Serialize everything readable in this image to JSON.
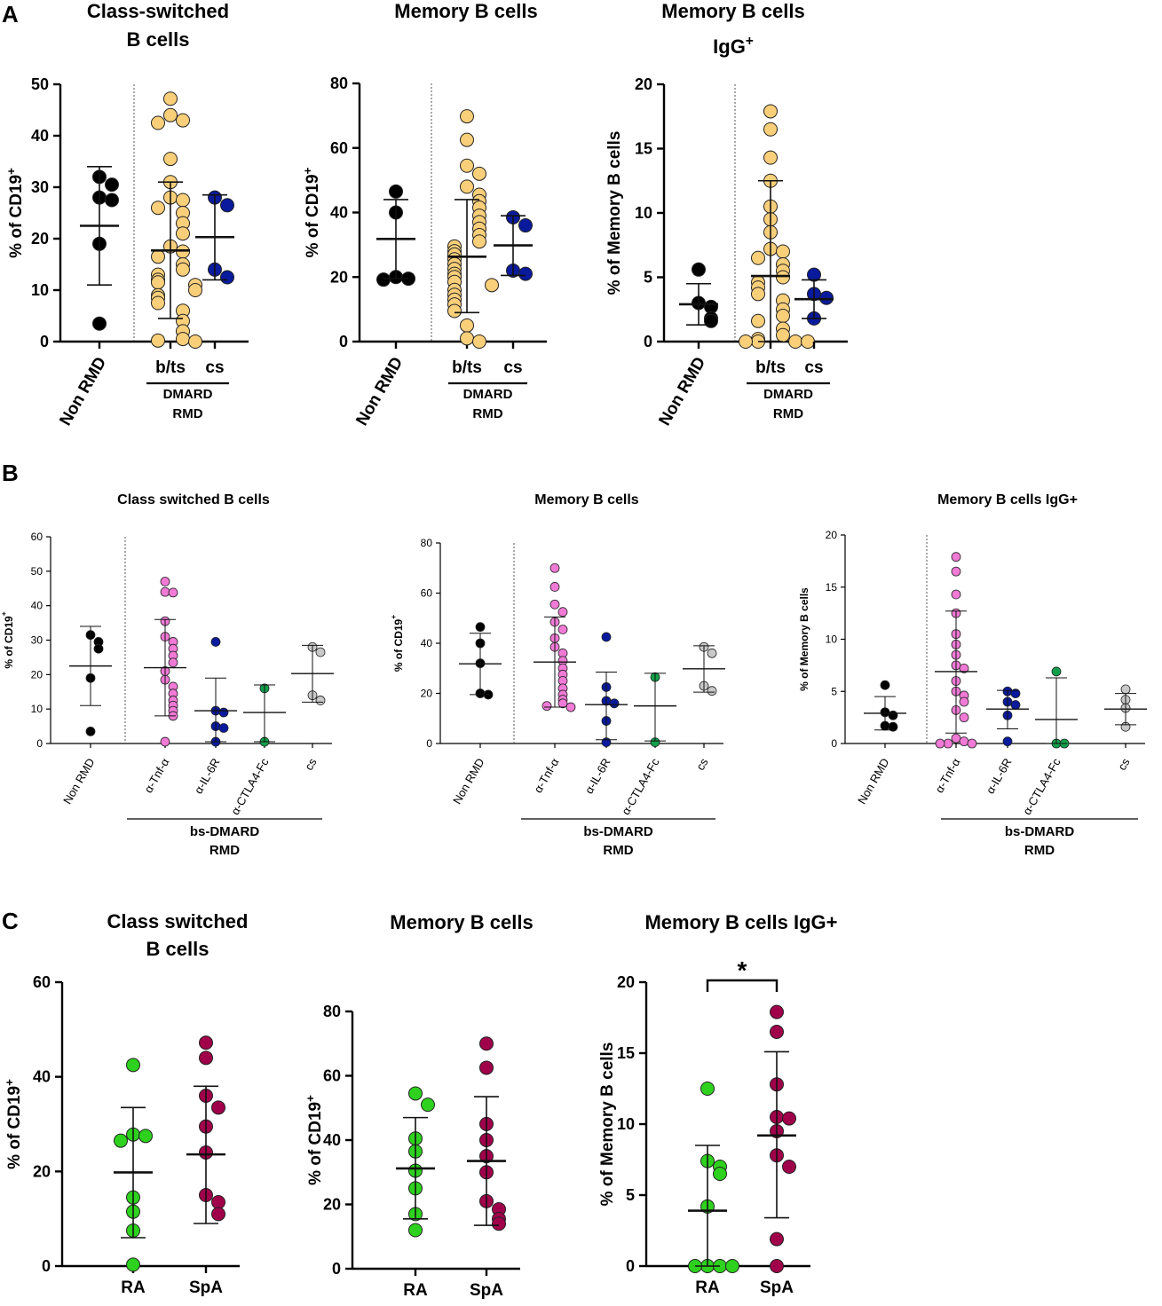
{
  "figure": {
    "panel_letters": [
      "A",
      "B",
      "C"
    ]
  },
  "chart_data": [
    {
      "type": "scatter",
      "panel": "A",
      "subplot": 1,
      "title_lines": [
        "Class-switched",
        "B cells"
      ],
      "ylabel": "% of CD19",
      "ylabel_sup": "+",
      "ylim": [
        0,
        50
      ],
      "yticks": [
        0,
        10,
        20,
        30,
        40,
        50
      ],
      "groups": [
        {
          "label": "Non RMD",
          "color": "#000000",
          "mean": 22.5,
          "sd_upper": 34,
          "sd_lower": 11,
          "values": [
            32,
            30.5,
            28,
            27.5,
            19,
            3.5
          ]
        },
        {
          "label": "b/ts",
          "color": "#F9CF7A",
          "mean": 17.7,
          "sd_upper": 31,
          "sd_lower": 4.5,
          "values": [
            47.2,
            44,
            43,
            42.5,
            35.5,
            31,
            28,
            27.5,
            26,
            25,
            23,
            21,
            18.5,
            17.5,
            16.5,
            15,
            14,
            13,
            12,
            11.5,
            11,
            10,
            9,
            8.5,
            7.5,
            6,
            4,
            2,
            0.5,
            0.2,
            0
          ]
        },
        {
          "label": "cs",
          "color": "#0a1a9c",
          "mean": 20.3,
          "sd_upper": 28.5,
          "sd_lower": 12,
          "values": [
            28,
            26.5,
            14,
            12.5
          ]
        }
      ],
      "group_bracket": {
        "lines": [
          "DMARD",
          "RMD"
        ]
      }
    },
    {
      "type": "scatter",
      "panel": "A",
      "subplot": 2,
      "title_lines": [
        "Memory B cells"
      ],
      "ylabel": "% of CD19",
      "ylabel_sup": "+",
      "ylim": [
        0,
        80
      ],
      "yticks": [
        0,
        20,
        40,
        60,
        80
      ],
      "groups": [
        {
          "label": "Non RMD",
          "color": "#000000",
          "mean": 31.8,
          "sd_upper": 44,
          "sd_lower": 19.5,
          "values": [
            46.5,
            40,
            20,
            19.5,
            19.2
          ]
        },
        {
          "label": "b/ts",
          "color": "#F9CF7A",
          "mean": 26.3,
          "sd_upper": 44,
          "sd_lower": 9,
          "values": [
            69.8,
            62.5,
            54.5,
            52,
            48,
            45.5,
            43.5,
            41.5,
            39,
            37,
            35,
            33,
            31,
            29.5,
            28,
            27,
            25.5,
            24,
            22.5,
            21,
            20,
            18.5,
            17.5,
            16,
            14.5,
            13,
            11.5,
            9.5,
            5,
            1,
            0
          ]
        },
        {
          "label": "cs",
          "color": "#0a1a9c",
          "mean": 29.8,
          "sd_upper": 39,
          "sd_lower": 20.5,
          "values": [
            38.5,
            36,
            22,
            21
          ]
        }
      ],
      "group_bracket": {
        "lines": [
          "DMARD",
          "RMD"
        ]
      }
    },
    {
      "type": "scatter",
      "panel": "A",
      "subplot": 3,
      "title_lines": [
        "Memory B cells",
        "IgG"
      ],
      "title_sup": "+",
      "ylabel": "% of Memory B cells",
      "ylim": [
        0,
        20
      ],
      "yticks": [
        0,
        5,
        10,
        15,
        20
      ],
      "groups": [
        {
          "label": "Non RMD",
          "color": "#000000",
          "mean": 2.9,
          "sd_upper": 4.5,
          "sd_lower": 1.3,
          "values": [
            5.6,
            3,
            2.7,
            1.8,
            1.6
          ]
        },
        {
          "label": "b/ts",
          "color": "#F9CF7A",
          "mean": 5.1,
          "sd_upper": 12.5,
          "sd_lower": 0,
          "values": [
            17.9,
            16.5,
            14.3,
            12.5,
            10.5,
            9.5,
            8.5,
            7.2,
            7,
            6.5,
            6,
            5.5,
            5,
            4.6,
            4.2,
            3.7,
            3.2,
            2.5,
            2,
            1.6,
            1,
            0.5,
            0.2,
            0,
            0,
            0,
            0
          ]
        },
        {
          "label": "cs",
          "color": "#0a1a9c",
          "mean": 3.3,
          "sd_upper": 4.8,
          "sd_lower": 1.8,
          "values": [
            5.2,
            3.7,
            3.4,
            1.8
          ]
        }
      ],
      "group_bracket": {
        "lines": [
          "DMARD",
          "RMD"
        ]
      }
    },
    {
      "type": "scatter",
      "panel": "B",
      "subplot": 1,
      "title_lines": [
        "Class switched B cells"
      ],
      "ylabel": "% of CD19",
      "ylabel_sup": "+",
      "ylim": [
        0,
        60
      ],
      "yticks": [
        0,
        10,
        20,
        30,
        40,
        50,
        60
      ],
      "groups": [
        {
          "label": "Non RMD",
          "color": "#000000",
          "mean": 22.5,
          "sd_upper": 34,
          "sd_lower": 11,
          "values": [
            31.5,
            29.5,
            27.5,
            19,
            3.5
          ]
        },
        {
          "label": "α-Tnf-α",
          "color": "#f07ad6",
          "mean": 22,
          "sd_upper": 36,
          "sd_lower": 8,
          "values": [
            47,
            44,
            43.8,
            35.5,
            31,
            29.5,
            27.5,
            25.5,
            23.5,
            21,
            18.5,
            16.5,
            14.5,
            12.5,
            11,
            9.5,
            8,
            0.5
          ]
        },
        {
          "label": "α-IL-6R",
          "color": "#0a1a9c",
          "mean": 9.5,
          "sd_upper": 19,
          "sd_lower": 0.5,
          "values": [
            29.5,
            9.5,
            9,
            5,
            4.5,
            0.5
          ]
        },
        {
          "label": "α-CTLA4-Fc",
          "color": "#11a04a",
          "mean": 9,
          "sd_upper": 17,
          "sd_lower": 0.5,
          "values": [
            16,
            0.5
          ]
        },
        {
          "label": "cs",
          "color": "#c8c8c8",
          "mean": 20.3,
          "sd_upper": 28.5,
          "sd_lower": 12,
          "values": [
            28,
            26.5,
            14,
            12.5
          ]
        }
      ],
      "group_bracket": {
        "lines": [
          "bs-DMARD",
          "RMD"
        ]
      }
    },
    {
      "type": "scatter",
      "panel": "B",
      "subplot": 2,
      "title_lines": [
        "Memory B cells"
      ],
      "ylabel": "% of CD19",
      "ylabel_sup": "+",
      "ylim": [
        0,
        80
      ],
      "yticks": [
        0,
        20,
        40,
        60,
        80
      ],
      "groups": [
        {
          "label": "Non RMD",
          "color": "#000000",
          "mean": 31.8,
          "sd_upper": 44,
          "sd_lower": 19.5,
          "values": [
            46.5,
            40,
            32,
            20,
            19.5
          ]
        },
        {
          "label": "α-Tnf-α",
          "color": "#f07ad6",
          "mean": 32.5,
          "sd_upper": 50.5,
          "sd_lower": 14.5,
          "values": [
            70,
            62.5,
            55.5,
            52.5,
            48.5,
            45.5,
            42,
            38.5,
            36,
            33,
            30,
            27.5,
            25,
            22,
            19.5,
            17.5,
            16,
            15,
            14.5
          ]
        },
        {
          "label": "α-IL-6R",
          "color": "#0a1a9c",
          "mean": 15.5,
          "sd_upper": 28.5,
          "sd_lower": 1.5,
          "values": [
            42.5,
            22.5,
            17,
            16,
            9,
            0.5
          ]
        },
        {
          "label": "α-CTLA4-Fc",
          "color": "#11a04a",
          "mean": 15,
          "sd_upper": 28,
          "sd_lower": 1,
          "values": [
            26.5,
            0.5
          ]
        },
        {
          "label": "cs",
          "color": "#c8c8c8",
          "mean": 29.8,
          "sd_upper": 39,
          "sd_lower": 20.5,
          "values": [
            38.5,
            36,
            23,
            21
          ]
        }
      ],
      "group_bracket": {
        "lines": [
          "bs-DMARD",
          "RMD"
        ]
      }
    },
    {
      "type": "scatter",
      "panel": "B",
      "subplot": 3,
      "title_lines": [
        "Memory B cells IgG+"
      ],
      "ylabel": "% of Memory B cells",
      "ylim": [
        0,
        20
      ],
      "yticks": [
        0,
        5,
        10,
        15,
        20
      ],
      "groups": [
        {
          "label": "Non RMD",
          "color": "#000000",
          "mean": 2.9,
          "sd_upper": 4.5,
          "sd_lower": 1.3,
          "values": [
            5.6,
            3,
            2.7,
            1.7,
            1.6
          ]
        },
        {
          "label": "α-Tnf-α",
          "color": "#f07ad6",
          "mean": 6.9,
          "sd_upper": 12.7,
          "sd_lower": 1,
          "values": [
            17.9,
            16.5,
            14.3,
            12.5,
            10.5,
            9.5,
            8.5,
            7.5,
            7.2,
            6,
            5,
            4.6,
            4,
            3.2,
            2.5,
            0.5,
            0.2,
            0,
            0,
            0
          ]
        },
        {
          "label": "α-IL-6R",
          "color": "#0a1a9c",
          "mean": 3.3,
          "sd_upper": 5.1,
          "sd_lower": 1.4,
          "values": [
            5,
            4.8,
            4,
            3.7,
            2.7,
            0.2
          ]
        },
        {
          "label": "α-CTLA4-Fc",
          "color": "#11a04a",
          "mean": 2.3,
          "sd_upper": 6.3,
          "sd_lower": 0,
          "values": [
            6.9,
            0,
            0
          ]
        },
        {
          "label": "cs",
          "color": "#c8c8c8",
          "mean": 3.3,
          "sd_upper": 4.8,
          "sd_lower": 1.8,
          "values": [
            5.2,
            4.2,
            3.4,
            1.6
          ]
        }
      ],
      "group_bracket": {
        "lines": [
          "bs-DMARD",
          "RMD"
        ]
      }
    },
    {
      "type": "scatter",
      "panel": "C",
      "subplot": 1,
      "title_lines": [
        "Class switched",
        "B cells"
      ],
      "ylabel": "% of CD19",
      "ylabel_sup": "+",
      "ylim": [
        0,
        60
      ],
      "yticks": [
        0,
        20,
        40,
        60
      ],
      "groups": [
        {
          "label": "RA",
          "color": "#2ed21e",
          "mean": 19.8,
          "sd_upper": 33.5,
          "sd_lower": 6,
          "values": [
            42.5,
            27.8,
            27.5,
            26.5,
            14.5,
            11.5,
            7.5,
            0.3
          ]
        },
        {
          "label": "SpA",
          "color": "#a0004a",
          "mean": 23.6,
          "sd_upper": 38,
          "sd_lower": 9,
          "values": [
            47.2,
            44,
            36,
            33.5,
            29.5,
            24,
            15,
            13.5,
            11
          ]
        }
      ]
    },
    {
      "type": "scatter",
      "panel": "C",
      "subplot": 2,
      "title_lines": [
        "Memory B cells"
      ],
      "ylabel": "% of CD19",
      "ylabel_sup": "+",
      "ylim": [
        0,
        80
      ],
      "yticks": [
        0,
        20,
        40,
        60,
        80
      ],
      "groups": [
        {
          "label": "RA",
          "color": "#2ed21e",
          "mean": 31.2,
          "sd_upper": 47,
          "sd_lower": 15.5,
          "values": [
            54.5,
            51,
            40.5,
            36.5,
            30.5,
            25,
            17,
            12
          ]
        },
        {
          "label": "SpA",
          "color": "#a0004a",
          "mean": 33.5,
          "sd_upper": 53.5,
          "sd_lower": 13.5,
          "values": [
            70,
            62.5,
            45,
            40,
            35,
            30,
            21,
            18.5,
            15.5,
            14
          ]
        }
      ]
    },
    {
      "type": "scatter",
      "panel": "C",
      "subplot": 3,
      "title_lines": [
        "Memory B cells IgG+"
      ],
      "ylabel": "% of Memory  B cells",
      "ylim": [
        0,
        20
      ],
      "yticks": [
        0,
        5,
        10,
        15,
        20
      ],
      "groups": [
        {
          "label": "RA",
          "color": "#2ed21e",
          "mean": 3.9,
          "sd_upper": 8.5,
          "sd_lower": 0,
          "values": [
            12.5,
            7.4,
            7,
            6.5,
            4.2,
            0,
            0,
            0,
            0
          ]
        },
        {
          "label": "SpA",
          "color": "#a0004a",
          "mean": 9.2,
          "sd_upper": 15.1,
          "sd_lower": 3.4,
          "values": [
            17.9,
            16.5,
            12.8,
            10.5,
            10.4,
            9.5,
            7.8,
            7,
            1.9,
            0
          ]
        }
      ],
      "significance": {
        "label": "*",
        "between": [
          0,
          1
        ]
      }
    }
  ]
}
